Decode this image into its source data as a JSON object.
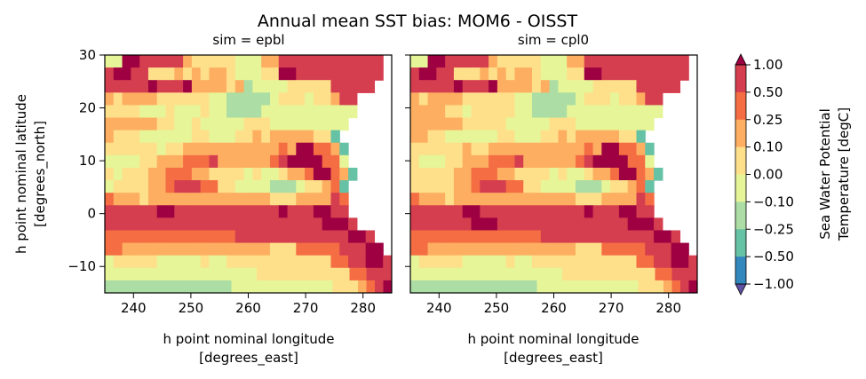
{
  "figure": {
    "title": "Annual mean SST bias: MOM6 - OISST"
  },
  "chart_data": [
    {
      "type": "heatmap",
      "title": "sim = epbl",
      "xlabel": "h point nominal longitude\n[degrees_east]",
      "ylabel": "h point nominal latitude\n[degrees_north]",
      "xlim": [
        235,
        285
      ],
      "ylim": [
        -15,
        30
      ],
      "xticks": [
        240,
        250,
        260,
        270,
        280
      ],
      "yticks": [
        -10,
        0,
        10,
        20,
        30
      ],
      "pattern": [
        "44998888865555544466888888888888X",
        "89988555656566544455998888888888X",
        "8888898889666656344445555588888XX",
        "65666655555544333334555455688XXXX",
        "55554445444544333344444444444XXXX",
        "6666665544544444555444444444XXXXX",
        "655544444455444556566666552XXXXXX",
        "5555554556666666666676997762XXXXX",
        "4444556667778666666789999774XXXXX",
        "54555667776655554544566799762XXXX",
        "4555566788877554444333455672XXXXX",
        "7666566666666666666555666687XXXXX",
        "8888889988888888888898889988XXXXX",
        "88888888888888888888888889998XXXX",
        "7777777777777778888888888888998XX",
        "77666666666666666665557777788899X",
        "455555444445445555555555557788998",
        "4444444444444444445555555555577888",
        "3333333333333334444444444445556789"
      ]
    },
    {
      "type": "heatmap",
      "title": "sim = cpl0",
      "xlabel": "h point nominal longitude\n[degrees_east]",
      "ylabel": "",
      "xlim": [
        235,
        285
      ],
      "ylim": [
        -15,
        30
      ],
      "xticks": [
        240,
        250,
        260,
        270,
        280
      ],
      "yticks": [
        -10,
        0,
        10,
        20,
        30
      ],
      "pattern": [
        "44998888865555544466888888888888X",
        "89988555656566544455998888888888X",
        "8888898889666656344445555588888XX",
        "65666655555544333334555455688XXXX",
        "66665545555544333344444444444XXXX",
        "6666665555544444555444444444XXXXX",
        "665544444455444556566666552XXXXXX",
        "5555556556666666666676997762XXXXX",
        "5444556667778666666789999774XXXXX",
        "55555667776655554544566799762XXXX",
        "5555566788877554444333455672XXXXX",
        "7666566666666666666555666687XXXXX",
        "8888889988888888888898889988XXXXX",
        "88888889998888888888888889998XXXX",
        "7777777777777778888888888888998XX",
        "77666666666666666665557777788899X",
        "455555444445445555555555557788998",
        "4444444444444444445555555555577888",
        "3333333333333334444444444445556789"
      ]
    }
  ],
  "colorbar": {
    "label_line1": "Sea Water Potential",
    "label_line2": "Temperature [degC]",
    "ticks": [
      "1.00",
      "0.50",
      "0.25",
      "0.10",
      "0.00",
      "−0.10",
      "−0.25",
      "−0.50",
      "−1.00"
    ],
    "levels": [
      -1.0,
      -0.5,
      -0.25,
      -0.1,
      0.0,
      0.1,
      0.25,
      0.5,
      1.0
    ],
    "colors": [
      "#5e4fa2",
      "#3288bd",
      "#66c2a5",
      "#abdda4",
      "#e6f598",
      "#fee08b",
      "#fdae61",
      "#f46d43",
      "#d53e4f",
      "#9e0142"
    ]
  }
}
